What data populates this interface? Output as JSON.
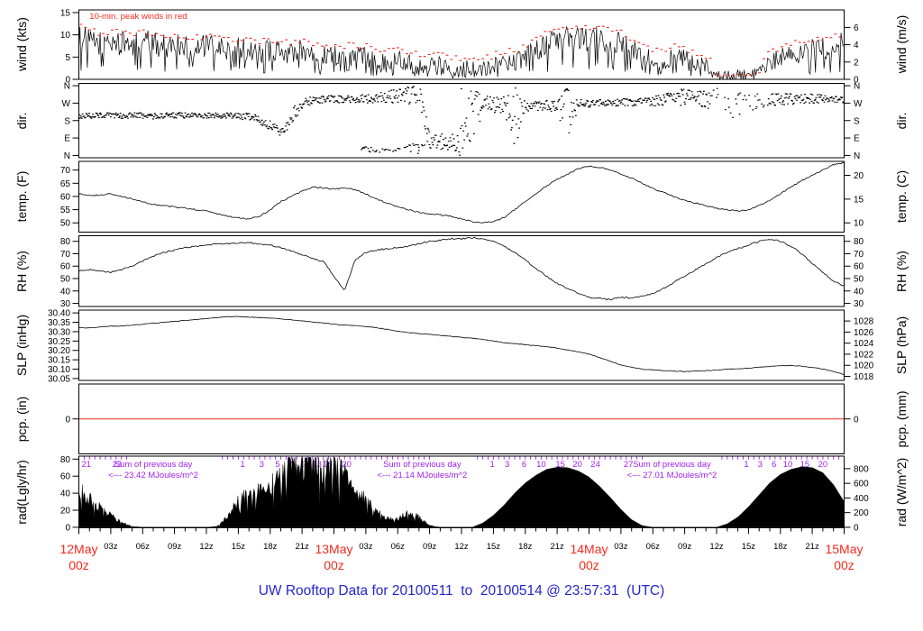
{
  "title": "UW Rooftop Data for 20100511  to  20100514 @ 23:57:31  (UTC)",
  "colors": {
    "red": "#f22b1d",
    "purple": "#a020f0",
    "blue": "#2525d0",
    "black": "#000000"
  },
  "x_axis": {
    "hours_total": 72,
    "minor_labels": [
      {
        "h": 3,
        "t": "03z"
      },
      {
        "h": 6,
        "t": "06z"
      },
      {
        "h": 9,
        "t": "09z"
      },
      {
        "h": 12,
        "t": "12z"
      },
      {
        "h": 15,
        "t": "15z"
      },
      {
        "h": 18,
        "t": "18z"
      },
      {
        "h": 21,
        "t": "21z"
      },
      {
        "h": 27,
        "t": "03z"
      },
      {
        "h": 30,
        "t": "06z"
      },
      {
        "h": 33,
        "t": "09z"
      },
      {
        "h": 36,
        "t": "12z"
      },
      {
        "h": 39,
        "t": "15z"
      },
      {
        "h": 42,
        "t": "18z"
      },
      {
        "h": 45,
        "t": "21z"
      },
      {
        "h": 51,
        "t": "03z"
      },
      {
        "h": 54,
        "t": "06z"
      },
      {
        "h": 57,
        "t": "09z"
      },
      {
        "h": 60,
        "t": "12z"
      },
      {
        "h": 63,
        "t": "15z"
      },
      {
        "h": 66,
        "t": "18z"
      },
      {
        "h": 69,
        "t": "21z"
      }
    ],
    "date_labels": [
      {
        "h": 0,
        "l1": "12May",
        "l2": "00z"
      },
      {
        "h": 24,
        "l1": "13May",
        "l2": "00z"
      },
      {
        "h": 48,
        "l1": "14May",
        "l2": "00z"
      },
      {
        "h": 72,
        "l1": "15May",
        "l2": "00z"
      }
    ]
  },
  "chart_data": [
    {
      "name": "wind",
      "type": "wind",
      "ylabel_left": "wind (kts)",
      "ylabel_right": "wind (m/s)",
      "ylim": [
        0,
        15.6
      ],
      "yticks_left": {
        "values": [
          0,
          5,
          10,
          15
        ],
        "labels": [
          "0",
          "5",
          "10",
          "15"
        ]
      },
      "yticks_right": {
        "values": [
          0,
          3.889,
          7.778,
          11.667
        ],
        "labels": [
          "0",
          "2",
          "4",
          "6"
        ]
      },
      "annotation": "10-min. peak winds in red",
      "jitter": 1.5,
      "peak_offset": 2.3,
      "values": [
        9.5,
        8.5,
        8.2,
        8.5,
        8,
        8,
        8.5,
        8,
        7.5,
        8,
        7.5,
        7,
        7.5,
        7,
        6.5,
        7,
        6.5,
        6,
        6.5,
        6,
        6,
        6.5,
        6,
        5.5,
        5.5,
        5,
        5.5,
        5,
        4.5,
        4,
        4.5,
        4,
        3.5,
        3,
        3.5,
        2.5,
        2.5,
        3,
        2.5,
        3,
        4,
        4,
        5,
        6.5,
        8,
        8.5,
        9,
        9.5,
        9,
        9,
        8.5,
        8,
        6.5,
        5.5,
        4.5,
        4.5,
        5,
        4.5,
        4,
        2.5,
        0.5,
        0.4,
        0.8,
        0.5,
        1,
        3.5,
        5,
        6,
        5.5,
        6.5,
        7,
        7.5,
        8
      ]
    },
    {
      "name": "dir",
      "type": "scatter",
      "ylabel_left": "dir.",
      "ylabel_right": "dir.",
      "ylim": [
        -12,
        372
      ],
      "yticks_left": {
        "values": [
          0,
          90,
          180,
          270,
          360
        ],
        "labels": [
          "N",
          "E",
          "S",
          "W",
          "N"
        ]
      },
      "yticks_right": {
        "values": [
          0,
          90,
          180,
          270,
          360
        ],
        "labels": [
          "N",
          "E",
          "S",
          "W",
          "N"
        ]
      },
      "centers": [
        205,
        205,
        208,
        206,
        204,
        207,
        205,
        203,
        206,
        208,
        205,
        207,
        204,
        206,
        205,
        203,
        200,
        185,
        155,
        118,
        200,
        265,
        285,
        290,
        292,
        288,
        285,
        292,
        296,
        300,
        310,
        320,
        330,
        80,
        70,
        75,
        90,
        180,
        250,
        260,
        270,
        180,
        260,
        255,
        260,
        250,
        180,
        265,
        268,
        270,
        272,
        274,
        276,
        278,
        280,
        285,
        295,
        300,
        295,
        290,
        280,
        270,
        260,
        270,
        280,
        285,
        290,
        292,
        294,
        293,
        292,
        291,
        290
      ],
      "spread": [
        15,
        15,
        15,
        15,
        15,
        15,
        15,
        15,
        15,
        15,
        15,
        15,
        15,
        15,
        15,
        15,
        18,
        22,
        25,
        25,
        45,
        25,
        20,
        18,
        18,
        20,
        22,
        25,
        25,
        30,
        40,
        60,
        80,
        50,
        40,
        50,
        120,
        175,
        60,
        40,
        50,
        175,
        40,
        25,
        25,
        30,
        175,
        25,
        20,
        18,
        18,
        18,
        20,
        22,
        25,
        30,
        40,
        45,
        40,
        50,
        70,
        80,
        70,
        60,
        50,
        35,
        30,
        28,
        26,
        24,
        22,
        20,
        18
      ],
      "secondary": {
        "start": 26.5,
        "step": 0.5,
        "values": [
          40,
          35,
          30,
          26,
          25,
          27,
          30,
          34,
          38,
          43,
          48,
          54,
          60,
          66
        ]
      },
      "sparse_range": [
        59.5,
        64.8
      ]
    },
    {
      "name": "temp",
      "type": "line",
      "ylabel_left": "temp. (F)",
      "ylabel_right": "temp. (C)",
      "ylim": [
        46.5,
        73.3
      ],
      "jitter": 0.25,
      "yticks_left": {
        "values": [
          50,
          55,
          60,
          65,
          70
        ],
        "labels": [
          "50",
          "55",
          "60",
          "65",
          "70"
        ]
      },
      "yticks_right": {
        "values": [
          50,
          59,
          68
        ],
        "labels": [
          "10",
          "15",
          "20"
        ]
      },
      "values": [
        61,
        60.5,
        60.5,
        61,
        60,
        59,
        58,
        57,
        56.5,
        56,
        55.5,
        55,
        54.5,
        53.5,
        52.5,
        52,
        51.5,
        52.5,
        55,
        58,
        60,
        62,
        63.5,
        63.2,
        62.8,
        63.2,
        62.5,
        61,
        59,
        57.5,
        56,
        55,
        54,
        53.5,
        53,
        52.5,
        51.5,
        50.5,
        50,
        50.5,
        52,
        55,
        58,
        61,
        64,
        66.5,
        68.5,
        70.5,
        71.5,
        71,
        70,
        68.5,
        67,
        65,
        63,
        61.5,
        60,
        58.5,
        57.5,
        56.5,
        55.5,
        55,
        54.5,
        55,
        56.5,
        58.5,
        61,
        63.5,
        66,
        68,
        70,
        72,
        72.8
      ]
    },
    {
      "name": "rh",
      "type": "line",
      "ylabel_left": "RH (%)",
      "ylabel_right": "RH (%)",
      "ylim": [
        27.5,
        84.5
      ],
      "jitter": 0.6,
      "yticks_left": {
        "values": [
          30,
          40,
          50,
          60,
          70,
          80
        ],
        "labels": [
          "30",
          "40",
          "50",
          "60",
          "70",
          "80"
        ]
      },
      "yticks_right": {
        "values": [
          30,
          40,
          50,
          60,
          70,
          80
        ],
        "labels": [
          "30",
          "40",
          "50",
          "60",
          "70",
          "80"
        ]
      },
      "values": [
        56,
        57,
        56,
        55,
        57,
        60,
        64,
        68,
        71,
        73,
        75,
        76,
        77,
        78,
        78,
        79,
        79,
        78,
        77,
        75,
        72,
        69,
        66,
        64,
        52,
        40,
        65,
        71,
        73,
        74,
        75,
        76,
        78,
        80,
        81,
        82,
        82,
        83,
        82,
        80,
        76,
        71,
        65,
        58,
        52,
        46,
        42,
        38,
        35,
        34,
        33,
        35,
        34,
        36,
        38,
        42,
        47,
        52,
        57,
        62,
        67,
        71,
        74,
        77,
        80,
        82,
        80,
        76,
        70,
        62,
        55,
        48,
        44
      ]
    },
    {
      "name": "slp",
      "type": "line",
      "ylabel_left": "SLP (inHg)",
      "ylabel_right": "SLP (hPa)",
      "ylim": [
        30.04,
        30.415
      ],
      "jitter": 0.0015,
      "yticks_left": {
        "values": [
          30.05,
          30.1,
          30.15,
          30.2,
          30.25,
          30.3,
          30.35,
          30.4
        ],
        "labels": [
          "30.05",
          "30.10",
          "30.15",
          "30.20",
          "30.25",
          "30.30",
          "30.35",
          "30.40"
        ]
      },
      "yticks_right": {
        "values": [
          30.0615,
          30.1206,
          30.1796,
          30.2387,
          30.2978,
          30.3568
        ],
        "labels": [
          "1018",
          "1020",
          "1022",
          "1024",
          "1026",
          "1028"
        ]
      },
      "values": [
        30.32,
        30.32,
        30.325,
        30.33,
        30.33,
        30.335,
        30.34,
        30.345,
        30.35,
        30.355,
        30.36,
        30.365,
        30.37,
        30.375,
        30.38,
        30.38,
        30.378,
        30.375,
        30.372,
        30.368,
        30.363,
        30.358,
        30.352,
        30.346,
        30.34,
        30.335,
        30.332,
        30.328,
        30.322,
        30.312,
        30.302,
        30.296,
        30.29,
        30.285,
        30.28,
        30.275,
        30.27,
        30.265,
        30.258,
        30.25,
        30.242,
        30.236,
        30.23,
        30.225,
        30.22,
        30.212,
        30.202,
        30.192,
        30.18,
        30.162,
        30.142,
        30.122,
        30.11,
        30.1,
        30.095,
        30.092,
        30.09,
        30.087,
        30.09,
        30.092,
        30.095,
        30.1,
        30.102,
        30.105,
        30.11,
        30.115,
        30.118,
        30.12,
        30.116,
        30.11,
        30.1,
        30.088,
        30.07
      ]
    },
    {
      "name": "pcp",
      "type": "flat",
      "ylabel_left": "pcp. (in)",
      "ylabel_right": "pcp. (mm)",
      "ylim": [
        -1,
        1
      ],
      "flat_value": 0,
      "yticks_left": {
        "values": [
          0
        ],
        "labels": [
          "0"
        ]
      },
      "yticks_right": {
        "values": [
          0
        ],
        "labels": [
          "0"
        ]
      }
    },
    {
      "name": "rad",
      "type": "area",
      "ylabel_left": "rad(Lgly/hr)",
      "ylabel_right": "rad (W/m^2)",
      "ylim": [
        -0.6,
        83.5
      ],
      "yticks_left": {
        "values": [
          0,
          20,
          40,
          60,
          80
        ],
        "labels": [
          "0",
          "20",
          "40",
          "60",
          "80"
        ]
      },
      "yticks_right": {
        "values": [
          0,
          17.2,
          34.4,
          51.6,
          68.8
        ],
        "labels": [
          "0",
          "200",
          "400",
          "600",
          "800"
        ]
      },
      "spiky_ranges": [
        [
          0,
          5.5
        ],
        [
          12.5,
          33.5
        ]
      ],
      "values": [
        48,
        34,
        22,
        14,
        6,
        1,
        0,
        0,
        0,
        0,
        0,
        0,
        0,
        1,
        12,
        32,
        38,
        42,
        48,
        58,
        75,
        74,
        76,
        68,
        71,
        62,
        42,
        35,
        18,
        10,
        10,
        18,
        12,
        2,
        0,
        0,
        0,
        0,
        5,
        14,
        26,
        40,
        52,
        61,
        68,
        70.5,
        70,
        66,
        59,
        48,
        35,
        21,
        9,
        2,
        0,
        0,
        0,
        0,
        0,
        0,
        0,
        4,
        12,
        24,
        38,
        52,
        62,
        68,
        71,
        70,
        64,
        50,
        30
      ],
      "cum_labels": [
        {
          "h": 0.7,
          "t": "21"
        },
        {
          "h": 3.6,
          "t": "23"
        },
        {
          "h": 15.4,
          "t": "1"
        },
        {
          "h": 17.2,
          "t": "3"
        },
        {
          "h": 18.7,
          "t": "5"
        },
        {
          "h": 19.9,
          "t": "7"
        },
        {
          "h": 21.2,
          "t": "9"
        },
        {
          "h": 22.4,
          "t": "13"
        },
        {
          "h": 23.4,
          "t": "18"
        },
        {
          "h": 25.2,
          "t": "20"
        },
        {
          "h": 38.9,
          "t": "1"
        },
        {
          "h": 40.3,
          "t": "3"
        },
        {
          "h": 41.9,
          "t": "6"
        },
        {
          "h": 43.5,
          "t": "10"
        },
        {
          "h": 45.3,
          "t": "15"
        },
        {
          "h": 46.9,
          "t": "20"
        },
        {
          "h": 48.6,
          "t": "24"
        },
        {
          "h": 51.7,
          "t": "27"
        },
        {
          "h": 62.8,
          "t": "1"
        },
        {
          "h": 64.1,
          "t": "3"
        },
        {
          "h": 65.4,
          "t": "6"
        },
        {
          "h": 66.7,
          "t": "10"
        },
        {
          "h": 68.3,
          "t": "15"
        },
        {
          "h": 70.0,
          "t": "20"
        }
      ],
      "sum_annotations": [
        {
          "h": 7.0,
          "line1": "Sum of previous day",
          "line2": "<--- 23.42 MJoules/m^2"
        },
        {
          "h": 32.3,
          "line1": "Sum of previous day",
          "line2": "<--- 21.14 MJoules/m^2"
        },
        {
          "h": 55.8,
          "line1": "Sum of previous day",
          "line2": "<--- 27.01 MJoules/m^2"
        }
      ]
    }
  ]
}
